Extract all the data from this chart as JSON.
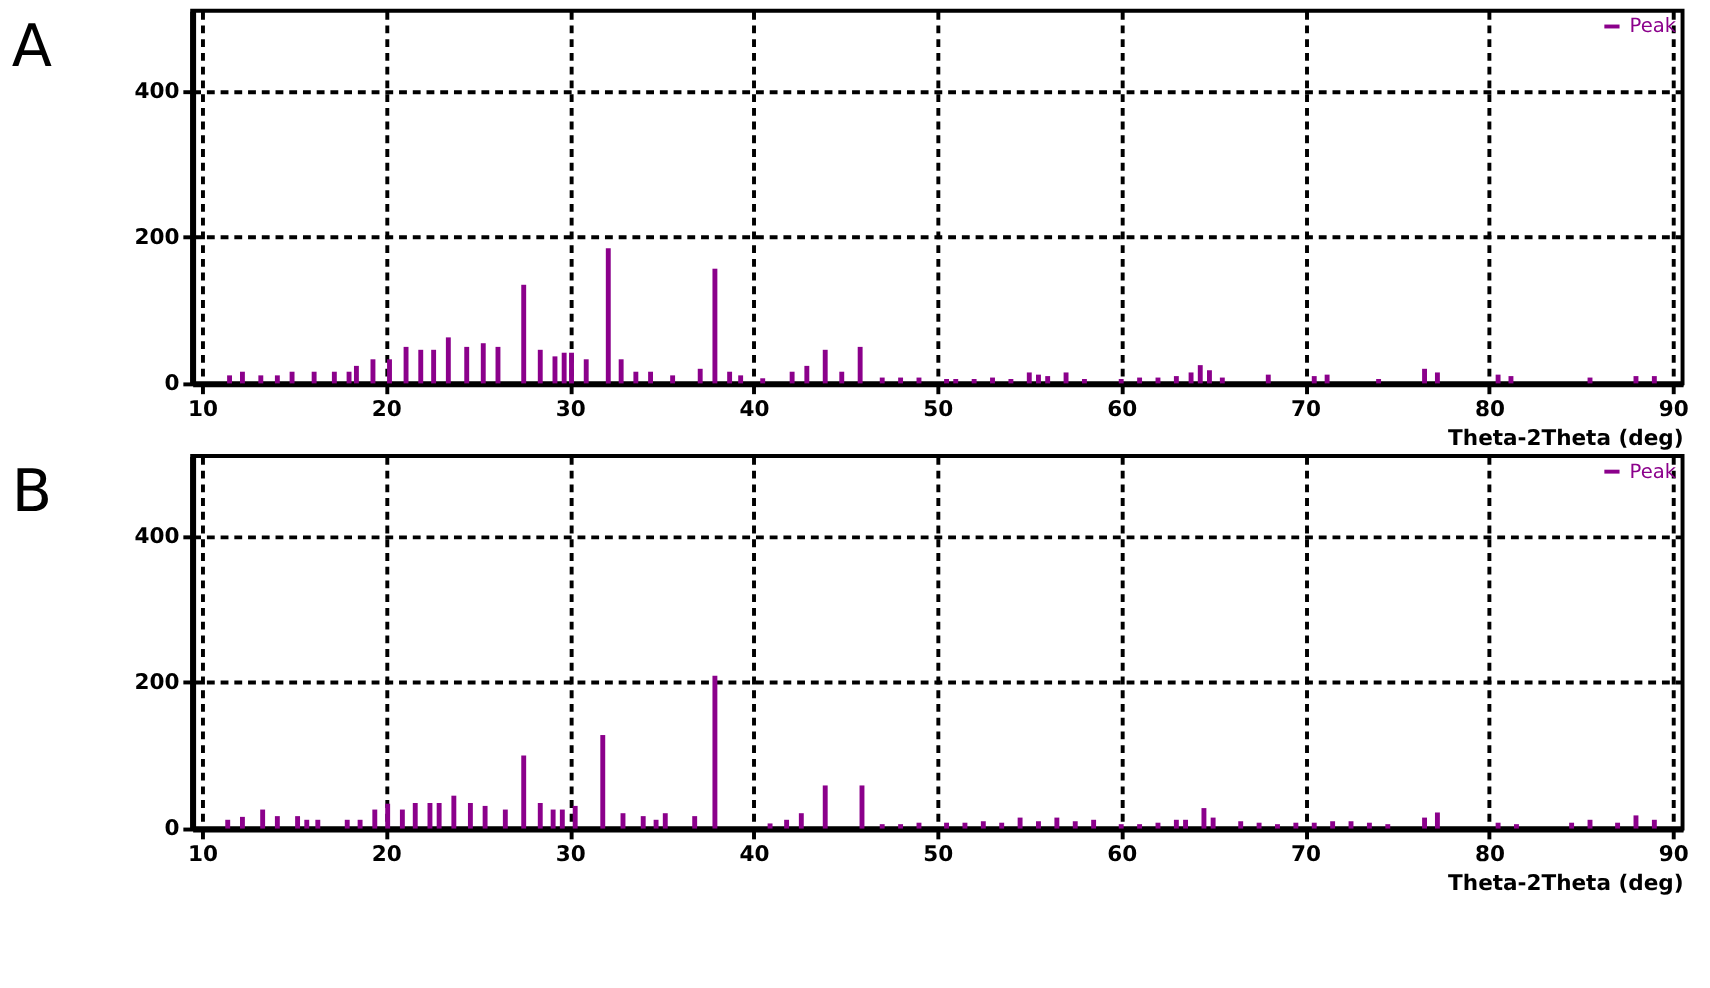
{
  "chart_data": [
    {
      "type": "bar",
      "title": "A",
      "xlabel": "Theta-2Theta (deg)",
      "xlim": [
        10,
        90
      ],
      "xticks": [
        10,
        20,
        30,
        40,
        50,
        60,
        70,
        80,
        90
      ],
      "ylim": [
        0,
        510
      ],
      "yticks": [
        0,
        200,
        400
      ],
      "grid": true,
      "legend": "top right",
      "x": [
        11.5,
        12.2,
        13.2,
        14.1,
        14.9,
        16.1,
        17.2,
        18.0,
        18.4,
        19.3,
        20.2,
        21.1,
        21.9,
        22.6,
        23.4,
        24.4,
        25.3,
        26.1,
        27.5,
        28.4,
        29.2,
        29.7,
        30.1,
        30.9,
        32.1,
        32.8,
        33.6,
        34.4,
        35.6,
        37.1,
        37.9,
        38.7,
        39.3,
        40.5,
        42.1,
        42.9,
        43.9,
        44.8,
        45.8,
        47,
        48,
        49,
        50.5,
        51,
        52,
        53,
        54,
        55,
        55.5,
        56,
        57,
        58,
        60,
        61,
        62,
        63,
        63.8,
        64.3,
        64.8,
        65.5,
        68,
        70.5,
        71.2,
        74,
        76.5,
        77.2,
        80.5,
        81.2,
        85.5,
        88,
        89
      ],
      "series": [
        {
          "name": "Peak",
          "color": "#8b008b",
          "values": [
            11,
            16,
            11,
            11,
            16,
            16,
            16,
            16,
            24,
            33,
            33,
            50,
            46,
            46,
            63,
            50,
            55,
            50,
            135,
            46,
            37,
            42,
            42,
            33,
            185,
            33,
            16,
            16,
            11,
            20,
            157,
            16,
            11,
            7,
            16,
            24,
            46,
            16,
            50,
            8,
            8,
            8,
            6,
            6,
            6,
            8,
            6,
            15,
            12,
            10,
            15,
            6,
            6,
            8,
            8,
            10,
            15,
            25,
            18,
            8,
            12,
            10,
            12,
            6,
            20,
            15,
            12,
            10,
            8,
            10,
            10
          ]
        }
      ]
    },
    {
      "type": "bar",
      "title": "B",
      "xlabel": "Theta-2Theta (deg)",
      "xlim": [
        10,
        90
      ],
      "xticks": [
        10,
        20,
        30,
        40,
        50,
        60,
        70,
        80,
        90
      ],
      "ylim": [
        0,
        510
      ],
      "yticks": [
        0,
        200,
        400
      ],
      "grid": true,
      "legend": "top right",
      "x": [
        11.4,
        12.2,
        13.3,
        14.1,
        15.2,
        15.7,
        16.3,
        17.9,
        18.6,
        19.4,
        20.1,
        20.9,
        21.6,
        22.4,
        22.9,
        23.7,
        24.6,
        25.4,
        26.5,
        27.5,
        28.4,
        29.1,
        29.6,
        30.3,
        31.8,
        32.9,
        34.0,
        34.7,
        35.2,
        36.8,
        37.9,
        40.9,
        41.8,
        42.6,
        43.9,
        45.9,
        47,
        48,
        49,
        50.5,
        51.5,
        52.5,
        53.5,
        54.5,
        55.5,
        56.5,
        57.5,
        58.5,
        60,
        61,
        62,
        63,
        63.5,
        64.5,
        65,
        66.5,
        67.5,
        68.5,
        69.5,
        70.5,
        71.5,
        72.5,
        73.5,
        74.5,
        76.5,
        77.2,
        80.5,
        81.5,
        84.5,
        85.5,
        87,
        88,
        89
      ],
      "series": [
        {
          "name": "Peak",
          "color": "#8b008b",
          "values": [
            12,
            16,
            26,
            17,
            17,
            12,
            12,
            12,
            12,
            26,
            34,
            26,
            35,
            35,
            35,
            45,
            35,
            31,
            26,
            100,
            35,
            26,
            26,
            31,
            128,
            21,
            17,
            12,
            21,
            17,
            209,
            7,
            12,
            21,
            59,
            59,
            6,
            6,
            8,
            8,
            8,
            10,
            8,
            15,
            10,
            15,
            10,
            12,
            6,
            6,
            8,
            12,
            12,
            28,
            15,
            10,
            8,
            6,
            8,
            8,
            10,
            10,
            8,
            6,
            15,
            22,
            8,
            6,
            8,
            12,
            8,
            18,
            12
          ]
        }
      ]
    }
  ]
}
